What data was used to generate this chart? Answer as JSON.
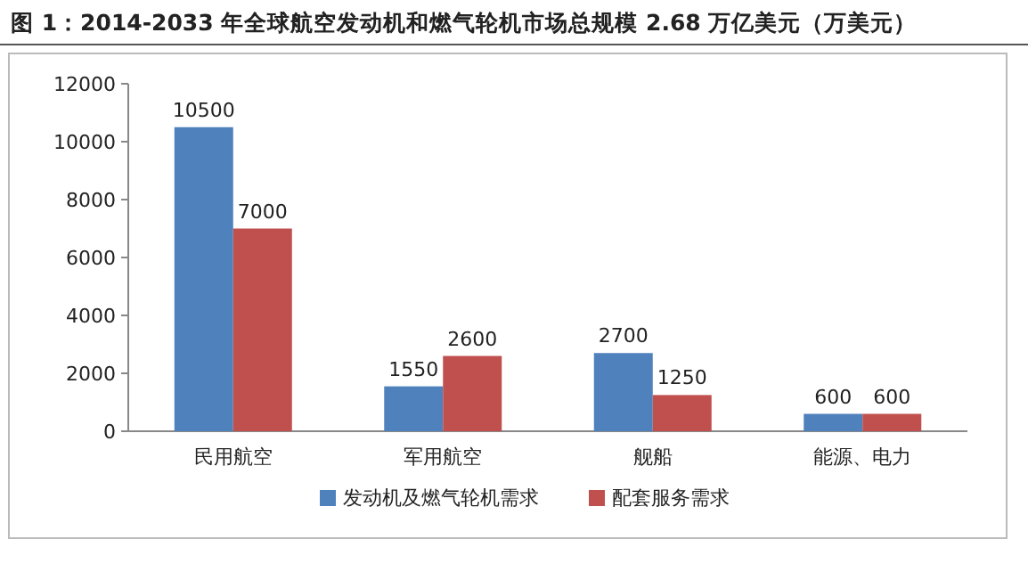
{
  "chart_data": {
    "type": "bar",
    "title": "图 1：2014-2033 年全球航空发动机和燃气轮机市场总规模 2.68 万亿美元（万美元）",
    "categories": [
      "民用航空",
      "军用航空",
      "舰船",
      "能源、电力"
    ],
    "series": [
      {
        "name": "发动机及燃气轮机需求",
        "color": "#4f81bd",
        "values": [
          10500,
          1550,
          2700,
          600
        ]
      },
      {
        "name": "配套服务需求",
        "color": "#c0504d",
        "values": [
          7000,
          2600,
          1250,
          600
        ]
      }
    ],
    "ylim": [
      0,
      12000
    ],
    "yticks": [
      0,
      2000,
      4000,
      6000,
      8000,
      10000,
      12000
    ],
    "data_labels": true,
    "legend": "bottom"
  }
}
